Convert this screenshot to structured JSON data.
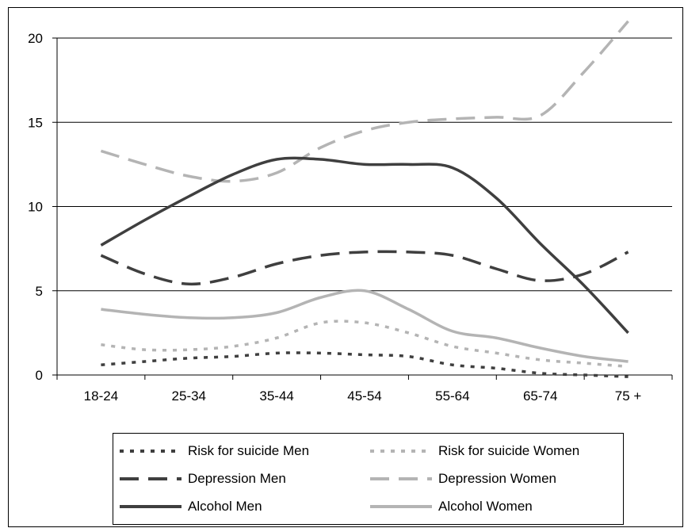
{
  "chart_data": {
    "type": "line",
    "categories": [
      "18-24",
      "25-34",
      "35-44",
      "45-54",
      "55-64",
      "65-74",
      "75 +"
    ],
    "x": [
      0,
      0.5,
      1,
      1.5,
      2,
      2.5,
      3,
      3.5,
      4,
      4.5,
      5,
      5.5,
      6
    ],
    "ylim": [
      0,
      20
    ],
    "yticks": [
      0,
      5,
      10,
      15,
      20
    ],
    "grid": true,
    "legend": "bottom",
    "series": [
      {
        "name": "Risk for suicide Men",
        "style": "dotted",
        "color": "#3f3f3f",
        "values": [
          0.6,
          0.8,
          1.0,
          1.1,
          1.3,
          1.3,
          1.2,
          1.1,
          0.6,
          0.4,
          0.1,
          0.0,
          -0.1
        ]
      },
      {
        "name": "Risk for suicide Women",
        "style": "dotted",
        "color": "#b4b4b4",
        "values": [
          1.8,
          1.5,
          1.5,
          1.7,
          2.2,
          3.1,
          3.1,
          2.5,
          1.7,
          1.3,
          0.9,
          0.7,
          0.5
        ]
      },
      {
        "name": "Depression Men",
        "style": "dashed",
        "color": "#3f3f3f",
        "values": [
          7.1,
          6.0,
          5.4,
          5.8,
          6.6,
          7.1,
          7.3,
          7.3,
          7.1,
          6.3,
          5.6,
          6.0,
          7.3
        ]
      },
      {
        "name": "Depression Women",
        "style": "dashed",
        "color": "#b4b4b4",
        "values": [
          13.3,
          12.5,
          11.8,
          11.5,
          12.0,
          13.5,
          14.5,
          15.0,
          15.2,
          15.3,
          15.4,
          18.0,
          21.0
        ]
      },
      {
        "name": "Alcohol Men",
        "style": "solid",
        "color": "#3f3f3f",
        "values": [
          7.7,
          9.2,
          10.6,
          11.9,
          12.8,
          12.8,
          12.5,
          12.5,
          12.3,
          10.5,
          7.8,
          5.3,
          2.5
        ]
      },
      {
        "name": "Alcohol Women",
        "style": "solid",
        "color": "#b4b4b4",
        "values": [
          3.9,
          3.6,
          3.4,
          3.4,
          3.7,
          4.6,
          5.0,
          3.9,
          2.6,
          2.2,
          1.6,
          1.1,
          0.8
        ]
      }
    ]
  }
}
